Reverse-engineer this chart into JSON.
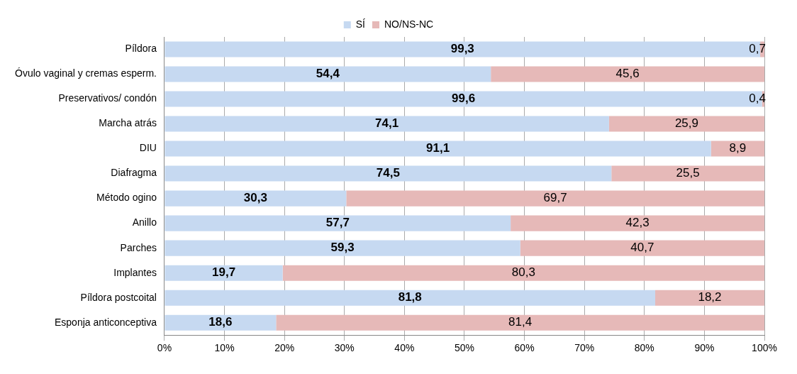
{
  "chart_data": {
    "type": "bar",
    "orientation": "horizontal",
    "stacked": true,
    "categories": [
      "Píldora",
      "Óvulo vaginal y cremas esperm.",
      "Preservativos/ condón",
      "Marcha atrás",
      "DIU",
      "Diafragma",
      "Método ogino",
      "Anillo",
      "Parches",
      "Implantes",
      "Píldora postcoital",
      "Esponja anticonceptiva"
    ],
    "series": [
      {
        "name": "SÍ",
        "color": "#c6d9f1",
        "values": [
          99.3,
          54.4,
          99.6,
          74.1,
          91.1,
          74.5,
          30.3,
          57.7,
          59.3,
          19.7,
          81.8,
          18.6
        ],
        "value_labels": [
          "99,3",
          "54,4",
          "99,6",
          "74,1",
          "91,1",
          "74,5",
          "30,3",
          "57,7",
          "59,3",
          "19,7",
          "81,8",
          "18,6"
        ]
      },
      {
        "name": "NO/NS-NC",
        "color": "#e6b9b8",
        "values": [
          0.7,
          45.6,
          0.4,
          25.9,
          8.9,
          25.5,
          69.7,
          42.3,
          40.7,
          80.3,
          18.2,
          81.4
        ],
        "value_labels": [
          "0,7",
          "45,6",
          "0,4",
          "25,9",
          "8,9",
          "25,5",
          "69,7",
          "42,3",
          "40,7",
          "80,3",
          "18,2",
          "81,4"
        ]
      }
    ],
    "xlim": [
      0,
      100
    ],
    "xticks": [
      {
        "value": 0,
        "label": "0%"
      },
      {
        "value": 10,
        "label": "10%"
      },
      {
        "value": 20,
        "label": "20%"
      },
      {
        "value": 30,
        "label": "30%"
      },
      {
        "value": 40,
        "label": "40%"
      },
      {
        "value": 50,
        "label": "50%"
      },
      {
        "value": 60,
        "label": "60%"
      },
      {
        "value": 70,
        "label": "70%"
      },
      {
        "value": 80,
        "label": "80%"
      },
      {
        "value": 90,
        "label": "90%"
      },
      {
        "value": 100,
        "label": "100%"
      }
    ],
    "grid": "x",
    "legend": "top"
  }
}
